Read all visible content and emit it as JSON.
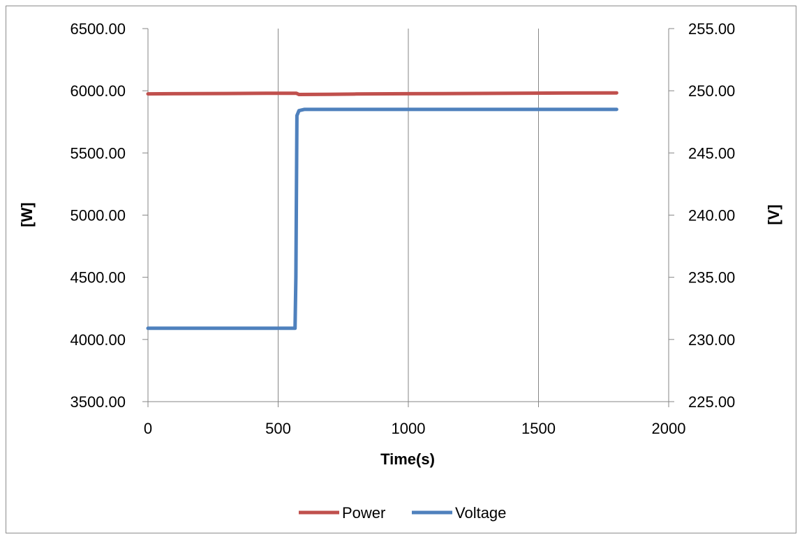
{
  "chart_data": {
    "type": "line",
    "title": "",
    "xlabel": "Time(s)",
    "ylabel_left": "[W]",
    "ylabel_right": "[V]",
    "xlim": [
      0,
      2000
    ],
    "ylim_left": [
      3500,
      6500
    ],
    "ylim_right": [
      225,
      255
    ],
    "x_ticks": [
      "0",
      "500",
      "1000",
      "1500",
      "2000"
    ],
    "y_left_ticks": [
      "3500.00",
      "4000.00",
      "4500.00",
      "5000.00",
      "5500.00",
      "6000.00",
      "6500.00"
    ],
    "y_right_ticks": [
      "225.00",
      "230.00",
      "235.00",
      "240.00",
      "245.00",
      "250.00",
      "255.00"
    ],
    "grid": "vertical",
    "legend_position": "bottom",
    "series": [
      {
        "name": "Power",
        "axis": "left",
        "color": "#c0504d",
        "x": [
          0,
          100,
          200,
          300,
          400,
          500,
          570,
          580,
          700,
          800,
          1000,
          1200,
          1400,
          1600,
          1800
        ],
        "y": [
          5975,
          5976,
          5977,
          5978,
          5979,
          5980,
          5980,
          5970,
          5972,
          5974,
          5976,
          5978,
          5980,
          5982,
          5983
        ]
      },
      {
        "name": "Voltage",
        "axis": "right",
        "color": "#4f81bd",
        "x": [
          0,
          100,
          200,
          300,
          400,
          500,
          565,
          568,
          572,
          580,
          600,
          800,
          1000,
          1200,
          1400,
          1600,
          1800
        ],
        "y": [
          230.9,
          230.9,
          230.9,
          230.9,
          230.9,
          230.9,
          230.9,
          235.0,
          248.0,
          248.4,
          248.5,
          248.5,
          248.5,
          248.5,
          248.5,
          248.5,
          248.5
        ]
      }
    ]
  }
}
